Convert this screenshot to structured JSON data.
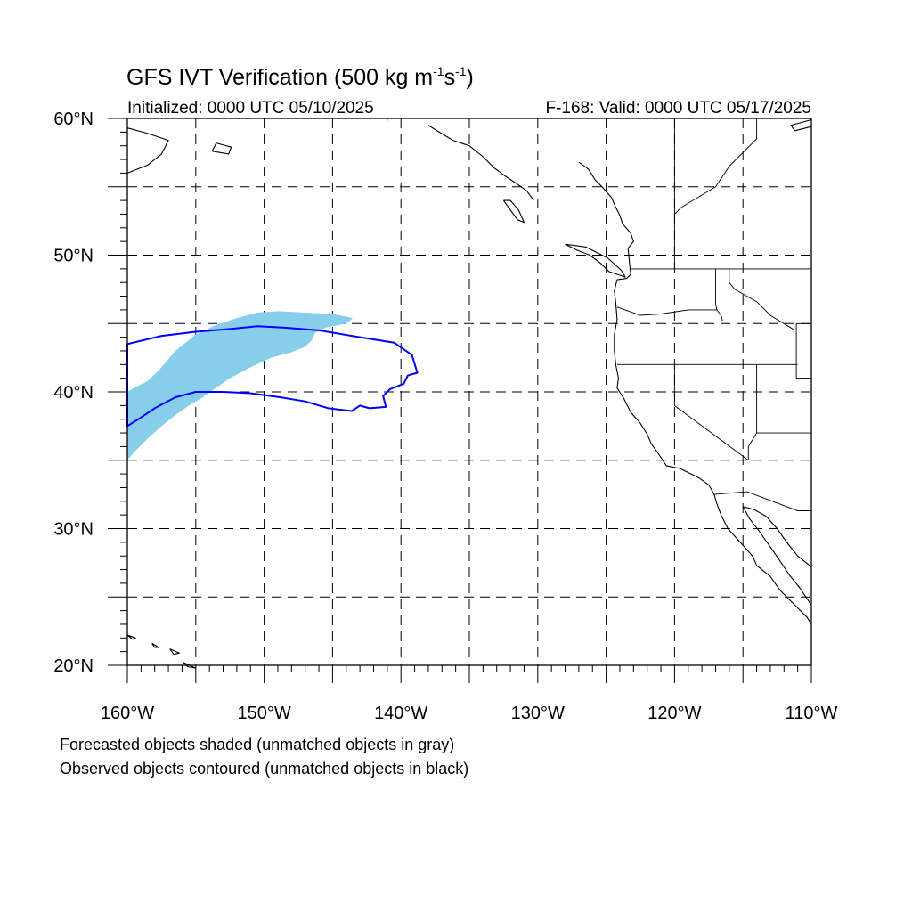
{
  "title": {
    "prefix": "GFS IVT Verification (500 kg m",
    "exp1": "-1",
    "mid": "s",
    "exp2": "-1",
    "suffix": ")"
  },
  "initialized": "Initialized: 0000 UTC 05/10/2025",
  "valid": "F-168: Valid: 0000 UTC 05/17/2025",
  "notes": [
    "Forecasted objects shaded (unmatched objects in gray)",
    "Observed objects contoured (unmatched objects in black)"
  ],
  "map": {
    "lon_range": [
      -160,
      -110
    ],
    "lat_range": [
      20,
      60
    ],
    "lat_labels": [
      "20°N",
      "30°N",
      "40°N",
      "50°N",
      "60°N"
    ],
    "lon_labels": [
      "160°W",
      "150°W",
      "140°W",
      "130°W",
      "120°W",
      "110°W"
    ],
    "grid_spacing_deg": 5,
    "colors": {
      "forecast_fill": "#87CEEB",
      "observed_contour": "#0000FF",
      "coastline": "#000000",
      "grid": "#000000"
    }
  },
  "objects": {
    "forecast_shaded": [
      [
        -160,
        35.0
      ],
      [
        -159.5,
        35.6
      ],
      [
        -158.5,
        36.6
      ],
      [
        -157.5,
        37.5
      ],
      [
        -156.5,
        38.3
      ],
      [
        -155.5,
        39.0
      ],
      [
        -154.5,
        39.6
      ],
      [
        -153.5,
        40.3
      ],
      [
        -152.5,
        41.0
      ],
      [
        -151,
        41.8
      ],
      [
        -149.5,
        42.5
      ],
      [
        -148,
        42.9
      ],
      [
        -147,
        43.3
      ],
      [
        -146.5,
        43.8
      ],
      [
        -146.3,
        44.3
      ],
      [
        -145.5,
        44.7
      ],
      [
        -144,
        45.0
      ],
      [
        -143.5,
        45.4
      ],
      [
        -145,
        45.7
      ],
      [
        -147,
        45.8
      ],
      [
        -149,
        45.9
      ],
      [
        -150.5,
        45.8
      ],
      [
        -152,
        45.4
      ],
      [
        -153.5,
        44.9
      ],
      [
        -155,
        44.2
      ],
      [
        -156.5,
        43.0
      ],
      [
        -157.5,
        41.8
      ],
      [
        -158.5,
        40.8
      ],
      [
        -159.5,
        40.3
      ],
      [
        -160,
        40.0
      ]
    ],
    "observed_contour": [
      [
        -160,
        43.5
      ],
      [
        -157.5,
        44.1
      ],
      [
        -155,
        44.4
      ],
      [
        -152.5,
        44.6
      ],
      [
        -150.5,
        44.8
      ],
      [
        -148.5,
        44.7
      ],
      [
        -146,
        44.5
      ],
      [
        -143,
        44.0
      ],
      [
        -140.5,
        43.6
      ],
      [
        -139.2,
        42.7
      ],
      [
        -138.8,
        41.4
      ],
      [
        -139.5,
        41.2
      ],
      [
        -139.8,
        40.6
      ],
      [
        -140.8,
        40.2
      ],
      [
        -141.3,
        39.7
      ],
      [
        -141.1,
        38.9
      ],
      [
        -142.3,
        38.8
      ],
      [
        -143,
        39.0
      ],
      [
        -143.6,
        38.6
      ],
      [
        -145.3,
        38.8
      ],
      [
        -147.0,
        39.3
      ],
      [
        -148.8,
        39.6
      ],
      [
        -151,
        39.9
      ],
      [
        -153,
        40.0
      ],
      [
        -155,
        40.0
      ],
      [
        -156.5,
        39.6
      ],
      [
        -158,
        38.8
      ],
      [
        -159.2,
        38.0
      ],
      [
        -160,
        37.5
      ]
    ]
  },
  "coastlines": [
    [
      [
        -127.0,
        56.8
      ],
      [
        -126.3,
        56.3
      ],
      [
        -125.8,
        55.5
      ],
      [
        -125.3,
        55.0
      ],
      [
        -124.6,
        54.2
      ],
      [
        -124.3,
        53.5
      ],
      [
        -124.0,
        52.9
      ],
      [
        -123.8,
        52.3
      ],
      [
        -123.2,
        51.6
      ],
      [
        -123.0,
        51.0
      ],
      [
        -123.4,
        50.5
      ],
      [
        -123.3,
        49.5
      ],
      [
        -123.2,
        48.6
      ],
      [
        -123.5,
        48.3
      ],
      [
        -124.2,
        48.2
      ],
      [
        -124.4,
        47.4
      ],
      [
        -124.3,
        46.5
      ],
      [
        -124.2,
        45.3
      ],
      [
        -124.4,
        44.2
      ],
      [
        -124.4,
        43.0
      ],
      [
        -124.3,
        42.0
      ],
      [
        -124.1,
        41.0
      ],
      [
        -124.2,
        40.3
      ],
      [
        -123.7,
        39.5
      ],
      [
        -123.2,
        38.5
      ],
      [
        -122.5,
        37.7
      ],
      [
        -122.0,
        36.9
      ],
      [
        -121.7,
        36.2
      ],
      [
        -121.2,
        35.5
      ],
      [
        -120.6,
        34.6
      ],
      [
        -119.6,
        34.4
      ],
      [
        -118.8,
        34.0
      ],
      [
        -118.2,
        33.7
      ],
      [
        -117.5,
        33.2
      ],
      [
        -117.1,
        32.5
      ],
      [
        -116.9,
        31.8
      ],
      [
        -116.6,
        31.0
      ],
      [
        -116.1,
        30.0
      ],
      [
        -115.2,
        29.0
      ],
      [
        -114.3,
        28.0
      ],
      [
        -114.0,
        27.3
      ],
      [
        -113.0,
        26.5
      ],
      [
        -112.3,
        25.5
      ],
      [
        -111.5,
        24.7
      ],
      [
        -110.3,
        23.5
      ],
      [
        -110.0,
        23.0
      ]
    ],
    [
      [
        -115.0,
        31.6
      ],
      [
        -114.5,
        30.7
      ],
      [
        -113.8,
        29.8
      ],
      [
        -113.1,
        28.8
      ],
      [
        -112.4,
        27.8
      ],
      [
        -111.6,
        26.6
      ],
      [
        -110.8,
        25.6
      ],
      [
        -110.0,
        24.4
      ]
    ],
    [
      [
        -115.0,
        31.6
      ],
      [
        -114.2,
        31.4
      ],
      [
        -113.3,
        30.9
      ],
      [
        -112.5,
        30.0
      ],
      [
        -111.8,
        29.0
      ],
      [
        -111.0,
        28.0
      ],
      [
        -110.0,
        27.2
      ]
    ],
    [
      [
        -128.0,
        50.8
      ],
      [
        -127.2,
        50.4
      ],
      [
        -126.2,
        50.0
      ],
      [
        -125.4,
        49.4
      ],
      [
        -124.8,
        48.8
      ],
      [
        -123.6,
        48.4
      ],
      [
        -123.9,
        48.9
      ],
      [
        -124.9,
        49.8
      ],
      [
        -126.5,
        50.6
      ],
      [
        -128.0,
        50.8
      ]
    ],
    [
      [
        -132.5,
        54.0
      ],
      [
        -132.0,
        53.3
      ],
      [
        -131.5,
        52.6
      ],
      [
        -131.0,
        52.4
      ],
      [
        -131.4,
        53.3
      ],
      [
        -132.0,
        54.0
      ],
      [
        -132.5,
        54.0
      ]
    ],
    [
      [
        -138.0,
        59.5
      ],
      [
        -137.2,
        59.0
      ],
      [
        -136.2,
        58.4
      ],
      [
        -135.0,
        58.0
      ],
      [
        -134.0,
        57.2
      ],
      [
        -133.2,
        56.4
      ],
      [
        -132.4,
        55.8
      ],
      [
        -131.5,
        55.2
      ],
      [
        -130.8,
        54.7
      ],
      [
        -130.3,
        54.0
      ]
    ],
    [
      [
        -160,
        56.0
      ],
      [
        -158.5,
        56.6
      ],
      [
        -157.5,
        57.4
      ],
      [
        -157.0,
        58.4
      ],
      [
        -158.5,
        58.9
      ],
      [
        -160,
        59.3
      ]
    ],
    [
      [
        -153.8,
        57.6
      ],
      [
        -152.6,
        57.4
      ],
      [
        -152.4,
        57.9
      ],
      [
        -153.5,
        58.2
      ],
      [
        -153.8,
        57.6
      ]
    ],
    [
      [
        -110,
        59.4
      ],
      [
        -111.2,
        59.1
      ],
      [
        -111.5,
        59.5
      ],
      [
        -110,
        59.9
      ]
    ],
    [
      [
        -160.0,
        22.2
      ],
      [
        -159.4,
        22.0
      ],
      [
        -159.6,
        21.9
      ],
      [
        -160.0,
        22.2
      ]
    ],
    [
      [
        -158.2,
        21.6
      ],
      [
        -157.7,
        21.3
      ],
      [
        -158.0,
        21.3
      ],
      [
        -158.2,
        21.6
      ]
    ],
    [
      [
        -156.9,
        21.2
      ],
      [
        -156.2,
        20.9
      ],
      [
        -156.6,
        20.8
      ],
      [
        -156.9,
        21.2
      ]
    ],
    [
      [
        -155.9,
        20.2
      ],
      [
        -155.0,
        19.8
      ],
      [
        -155.6,
        19.9
      ],
      [
        -155.9,
        20.2
      ]
    ]
  ],
  "boundaries": [
    [
      [
        -123.3,
        49.0
      ],
      [
        -110,
        49.0
      ]
    ],
    [
      [
        -141.0,
        60.0
      ],
      [
        -141.0,
        59.8
      ]
    ],
    [
      [
        -124.2,
        46.2
      ],
      [
        -122.5,
        45.6
      ],
      [
        -121.0,
        45.7
      ],
      [
        -119.0,
        46.0
      ],
      [
        -116.9,
        46.0
      ]
    ],
    [
      [
        -124.2,
        42.0
      ],
      [
        -111.0,
        42.0
      ]
    ],
    [
      [
        -120.0,
        42.0
      ],
      [
        -120.0,
        39.0
      ],
      [
        -114.6,
        35.0
      ]
    ],
    [
      [
        -117.1,
        32.5
      ],
      [
        -114.7,
        32.7
      ],
      [
        -111.0,
        31.3
      ],
      [
        -110,
        31.3
      ]
    ],
    [
      [
        -117.0,
        49.0
      ],
      [
        -117.0,
        46.4
      ],
      [
        -116.9,
        46.0
      ],
      [
        -116.6,
        45.6
      ],
      [
        -116.5,
        45.2
      ]
    ],
    [
      [
        -114.0,
        42.0
      ],
      [
        -114.0,
        37.0
      ],
      [
        -114.6,
        36.0
      ],
      [
        -114.6,
        35.0
      ]
    ],
    [
      [
        -114.0,
        37.0
      ],
      [
        -110,
        37.0
      ]
    ],
    [
      [
        -111.1,
        45.0
      ],
      [
        -110,
        45.0
      ]
    ],
    [
      [
        -111.1,
        45.0
      ],
      [
        -111.1,
        41.0
      ],
      [
        -110,
        41.0
      ]
    ],
    [
      [
        -116.0,
        49.0
      ],
      [
        -116.0,
        48.0
      ],
      [
        -115.6,
        47.5
      ],
      [
        -114.0,
        46.6
      ],
      [
        -113.0,
        45.6
      ],
      [
        -111.2,
        44.5
      ]
    ],
    [
      [
        -120.0,
        60.0
      ],
      [
        -120.0,
        49.0
      ]
    ],
    [
      [
        -114.0,
        60.0
      ],
      [
        -114.0,
        58.5
      ],
      [
        -116.0,
        56.5
      ],
      [
        -117.0,
        55.0
      ],
      [
        -119.5,
        53.5
      ],
      [
        -120.0,
        53.0
      ]
    ]
  ]
}
